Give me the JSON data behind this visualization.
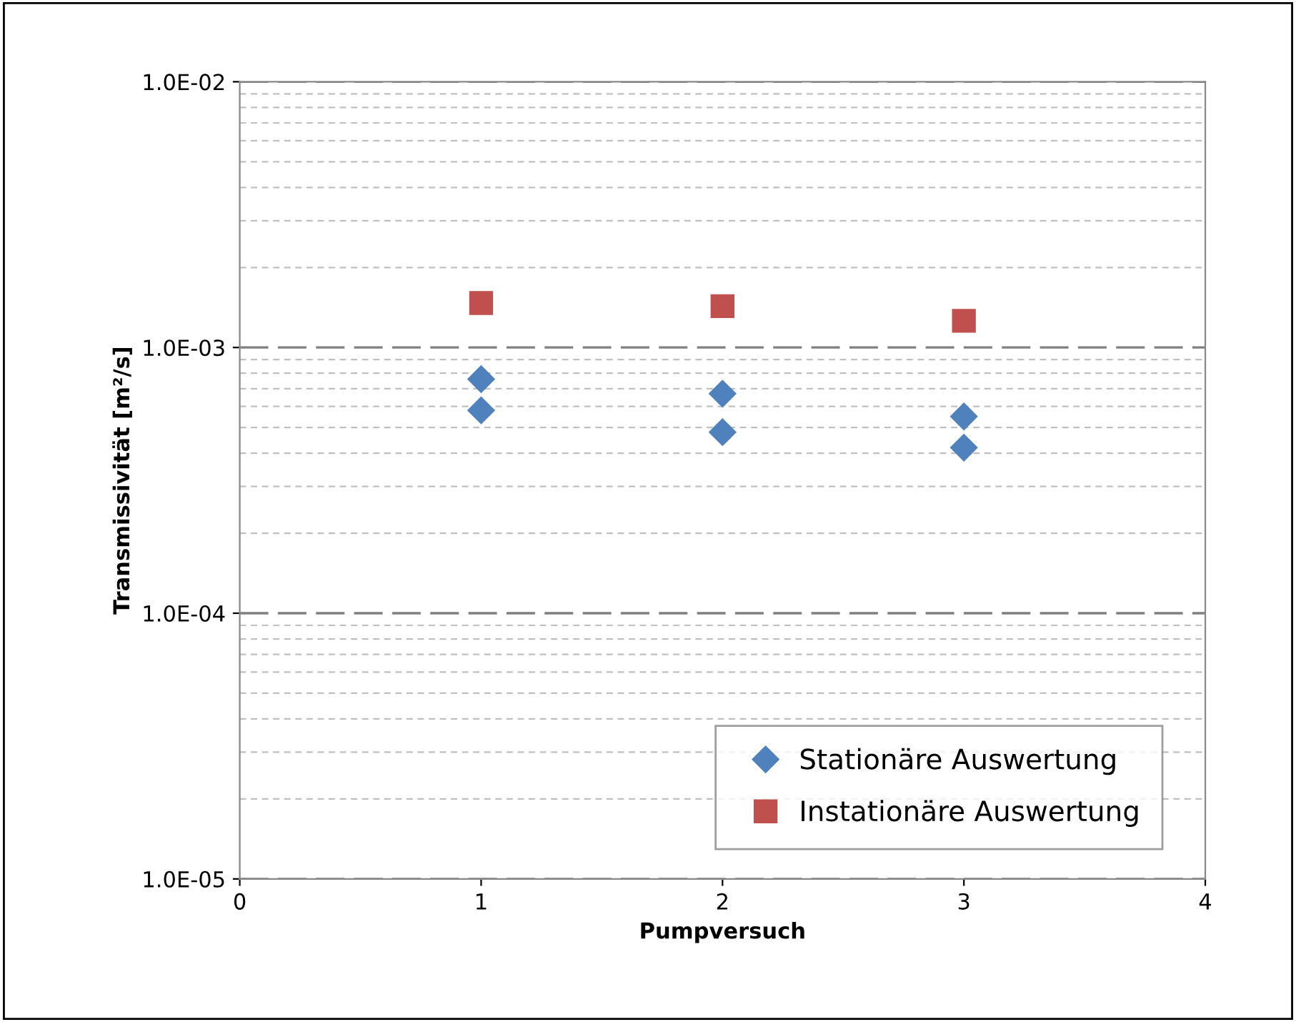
{
  "chart_data": {
    "type": "scatter",
    "xlabel": "Pumpversuch",
    "ylabel": "Transmissivität [m²/s]",
    "series": [
      {
        "name": "Stationäre Auswertung",
        "color": "#4f81bd",
        "marker": "diamond",
        "x": [
          1,
          1,
          2,
          2,
          3,
          3
        ],
        "values": [
          0.00076,
          0.00058,
          0.00067,
          0.00048,
          0.00055,
          0.00042
        ]
      },
      {
        "name": "Instationäre Auswertung",
        "color": "#c0504d",
        "marker": "square",
        "x": [
          1,
          2,
          3
        ],
        "values": [
          0.00147,
          0.00143,
          0.00126
        ]
      }
    ],
    "log": "y",
    "xlim": [
      0,
      4
    ],
    "xticks": [
      0,
      1,
      2,
      3,
      4
    ],
    "ylim": [
      1e-05,
      0.01
    ],
    "yticks": [
      {
        "value": 1e-05,
        "label": "1.0E-05"
      },
      {
        "value": 0.0001,
        "label": "1.0E-04"
      },
      {
        "value": 0.001,
        "label": "1.0E-03"
      },
      {
        "value": 0.01,
        "label": "1.0E-02"
      }
    ],
    "grid": "y",
    "legend": "bottom right"
  }
}
